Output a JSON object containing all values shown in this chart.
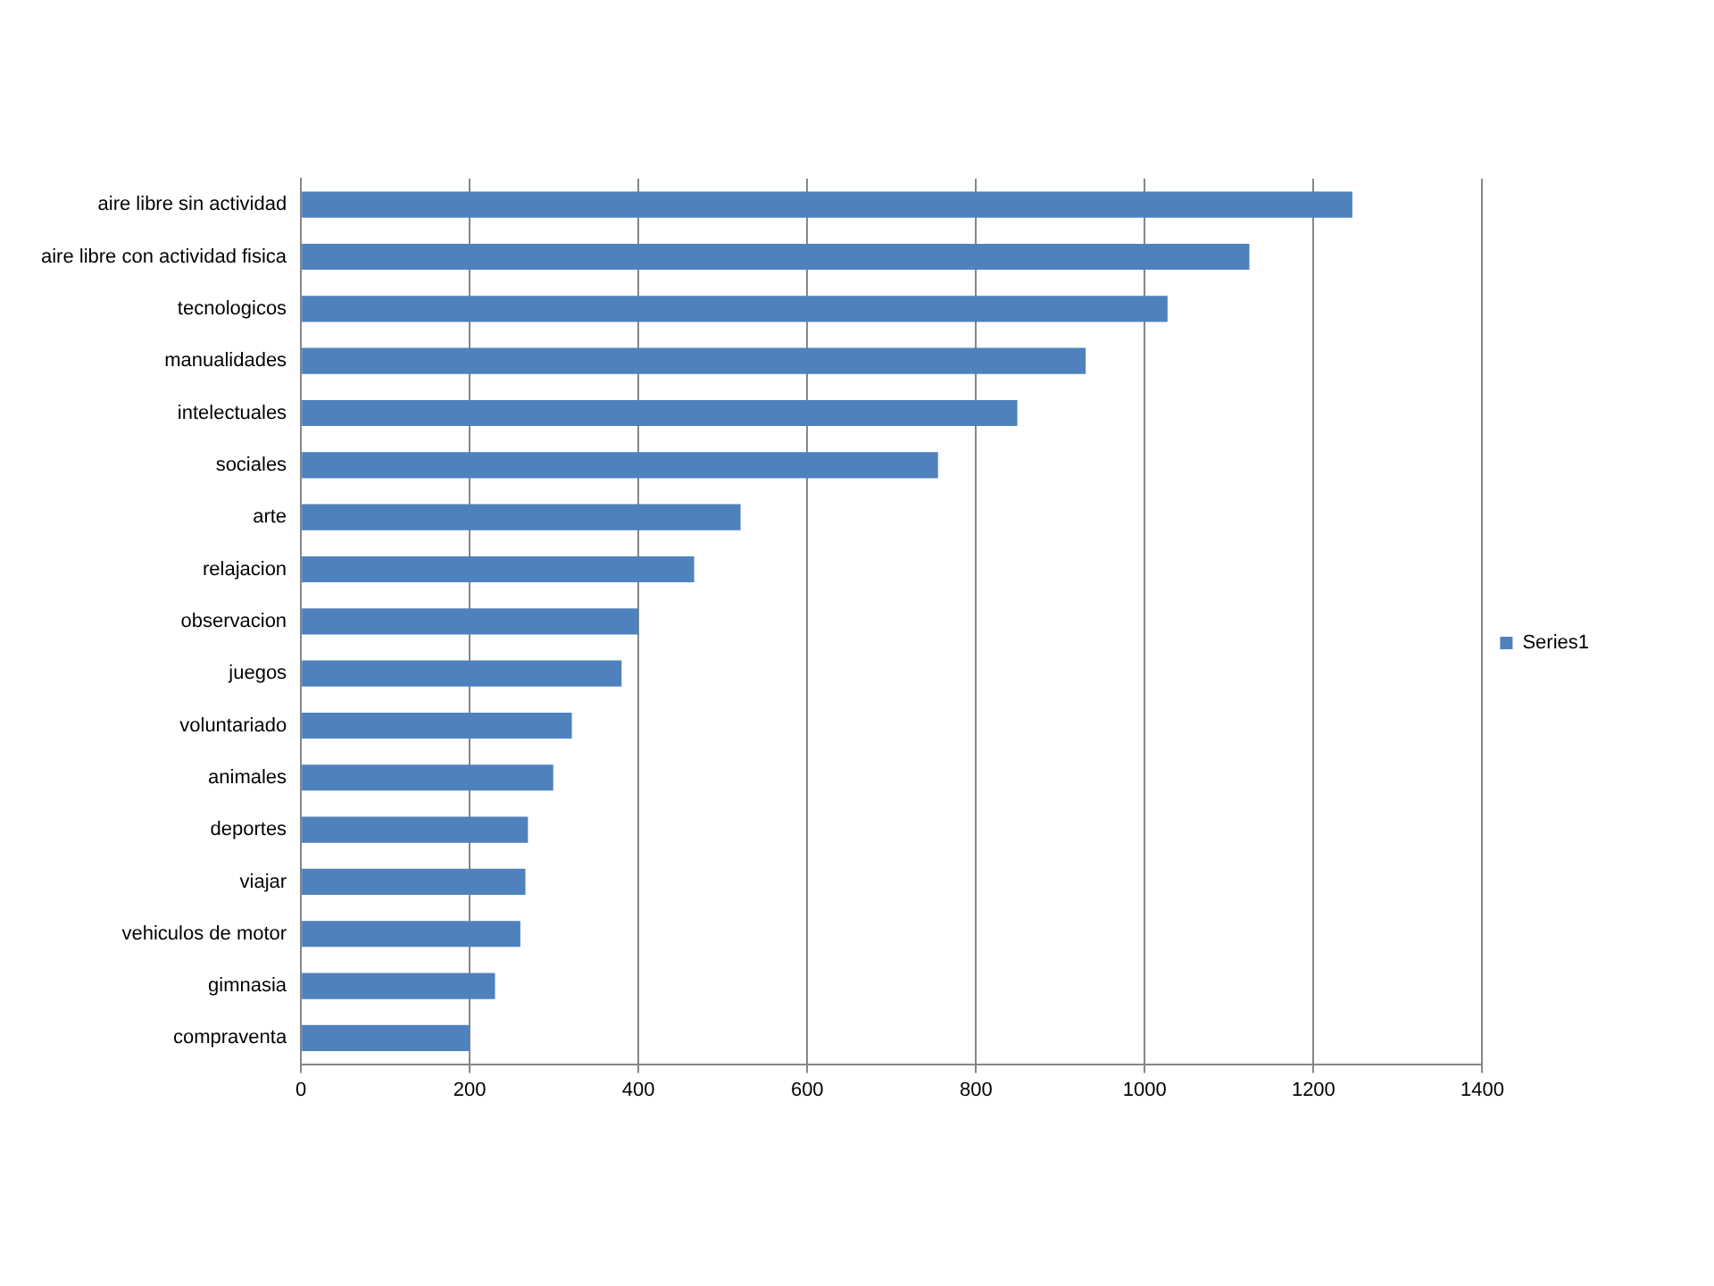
{
  "chart_data": {
    "type": "bar",
    "orientation": "horizontal",
    "categories": [
      "aire libre sin actividad",
      "aire libre con actividad fisica",
      "tecnologicos",
      "manualidades",
      "intelectuales",
      "sociales",
      "arte",
      "relajacion",
      "observacion",
      "juegos",
      "voluntariado",
      "animales",
      "deportes",
      "viajar",
      "vehiculos de motor",
      "gimnasia",
      "compraventa"
    ],
    "series": [
      {
        "name": "Series1",
        "color": "#4f81bd",
        "values": [
          1246,
          1124,
          1027,
          930,
          849,
          755,
          521,
          466,
          400,
          380,
          321,
          299,
          269,
          266,
          260,
          230,
          200
        ]
      }
    ],
    "xlim": [
      0,
      1400
    ],
    "xticks": [
      0,
      200,
      400,
      600,
      800,
      1000,
      1200,
      1400
    ],
    "grid": "x",
    "legend": "right"
  }
}
